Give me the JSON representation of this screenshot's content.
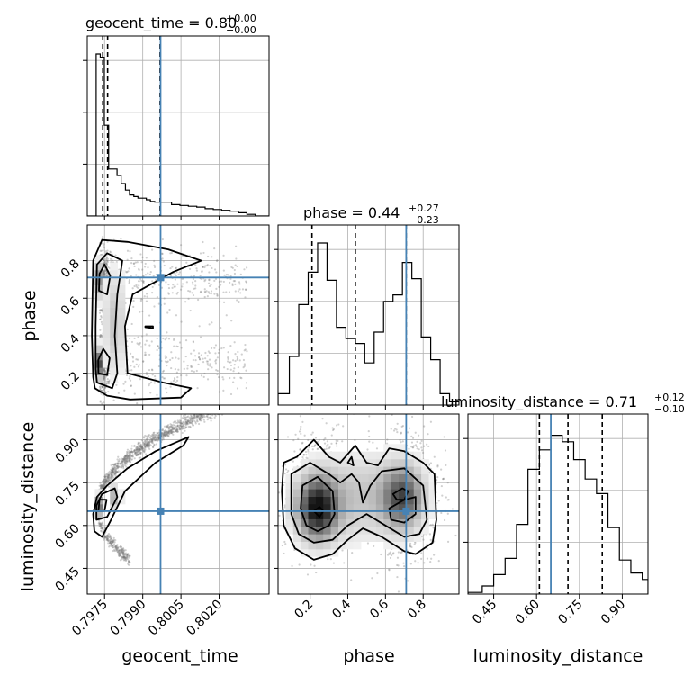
{
  "chart_data": {
    "type": "corner",
    "parameters": [
      "geocent_time",
      "phase",
      "luminosity_distance"
    ],
    "truth_color": "#4682b4",
    "titles": [
      {
        "name": "geocent_time",
        "text": "geocent_time = 0.80",
        "plus": "+0.00",
        "minus": "−0.00"
      },
      {
        "name": "phase",
        "text": "phase = 0.44",
        "plus": "+0.27",
        "minus": "−0.23"
      },
      {
        "name": "luminosity_distance",
        "text": "luminosity_distance = 0.71",
        "plus": "+0.12",
        "minus": "−0.10"
      }
    ],
    "ranges": {
      "geocent_time": [
        0.79682,
        0.80396
      ],
      "phase": [
        0.03,
        0.99
      ],
      "luminosity_distance": [
        0.36,
        0.99
      ]
    },
    "ticks": {
      "geocent_time": {
        "values": [
          0.7975,
          0.799,
          0.8005,
          0.802
        ],
        "labels": [
          "0.7975",
          "0.7990",
          "0.8005",
          "0.8020"
        ]
      },
      "phase": {
        "values": [
          0.2,
          0.4,
          0.6,
          0.8
        ],
        "labels": [
          "0.2",
          "0.4",
          "0.6",
          "0.8"
        ]
      },
      "luminosity_distance": {
        "values": [
          0.45,
          0.6,
          0.75,
          0.9
        ],
        "labels": [
          "0.45",
          "0.60",
          "0.75",
          "0.90"
        ]
      }
    },
    "truths": {
      "geocent_time": 0.7997,
      "phase": 0.71,
      "luminosity_distance": 0.65
    },
    "quantiles": {
      "geocent_time": [
        0.79743,
        0.79762,
        0.79968
      ],
      "phase": [
        0.21,
        0.44,
        0.71
      ],
      "luminosity_distance": [
        0.61,
        0.71,
        0.83
      ]
    },
    "histograms": {
      "geocent_time": {
        "edges": [
          0.79682,
          0.79717,
          0.79733,
          0.79749,
          0.79766,
          0.79782,
          0.79799,
          0.79815,
          0.79832,
          0.79848,
          0.79865,
          0.79881,
          0.79897,
          0.79914,
          0.7993,
          0.79947,
          0.79963,
          0.7998,
          0.80013,
          0.80046,
          0.80079,
          0.80112,
          0.80145,
          0.80177,
          0.8021,
          0.80243,
          0.80276,
          0.80309,
          0.80342,
          0.80396
        ],
        "counts": [
          0,
          1.0,
          0.98,
          0.56,
          0.29,
          0.29,
          0.25,
          0.2,
          0.16,
          0.13,
          0.12,
          0.11,
          0.11,
          0.1,
          0.09,
          0.085,
          0.085,
          0.085,
          0.07,
          0.065,
          0.06,
          0.055,
          0.045,
          0.04,
          0.035,
          0.03,
          0.02,
          0.01,
          0
        ]
      },
      "phase": {
        "edges": [
          0.03,
          0.09,
          0.14,
          0.19,
          0.24,
          0.29,
          0.34,
          0.39,
          0.44,
          0.49,
          0.54,
          0.59,
          0.64,
          0.69,
          0.74,
          0.79,
          0.84,
          0.89,
          0.94,
          0.99
        ],
        "counts": [
          0.07,
          0.3,
          0.62,
          0.82,
          1.0,
          0.77,
          0.48,
          0.41,
          0.38,
          0.26,
          0.45,
          0.64,
          0.68,
          0.88,
          0.78,
          0.42,
          0.28,
          0.07,
          0.02
        ]
      },
      "luminosity_distance": {
        "edges": [
          0.36,
          0.41,
          0.45,
          0.49,
          0.53,
          0.57,
          0.61,
          0.65,
          0.69,
          0.73,
          0.77,
          0.81,
          0.85,
          0.89,
          0.93,
          0.97,
          0.99
        ],
        "counts": [
          0.01,
          0.05,
          0.12,
          0.22,
          0.43,
          0.77,
          0.89,
          0.98,
          0.94,
          0.83,
          0.71,
          0.62,
          0.41,
          0.21,
          0.13,
          0.09
        ]
      }
    },
    "scatter_densities": {
      "phase_vs_geocent_time": "bimodal in phase near 0.25 and 0.7 around geocent_time 0.7973, with a tail extending to 0.803",
      "luminosity_distance_vs_geocent_time": "curved ridge from geocent_time 0.7973 / distance 0.66 rising to 0.9 at 0.8008 and 0.99 at 0.803, lower branch down to 0.44",
      "luminosity_distance_vs_phase": "two modes at phase 0.25 / distance 0.66 and phase 0.7 / distance 0.7"
    },
    "axis_labels": {
      "geocent_time": "geocent_time",
      "phase": "phase",
      "luminosity_distance": "luminosity_distance"
    },
    "grid": true
  }
}
